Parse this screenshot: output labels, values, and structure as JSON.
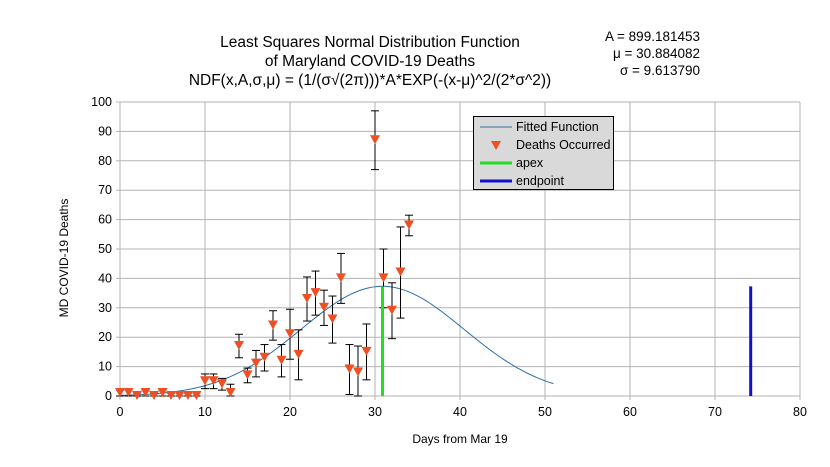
{
  "chart_data": {
    "type": "scatter",
    "title_lines": [
      "Least Squares Normal Distribution Function",
      "of Maryland COVID-19 Deaths",
      "NDF(x,A,σ,μ) = (1/(σ√(2π)))*A*EXP(-(x-μ)^2/(2*σ^2))"
    ],
    "parameters": [
      "A = 899.181453",
      "μ = 30.884082",
      "σ = 9.613790"
    ],
    "xlabel": "Days from Mar 19",
    "ylabel": "MD COVID-19 Deaths",
    "xlim": [
      0,
      80
    ],
    "ylim": [
      0,
      100
    ],
    "x_ticks": [
      0,
      10,
      20,
      30,
      40,
      50,
      60,
      70,
      80
    ],
    "y_ticks": [
      0,
      10,
      20,
      30,
      40,
      50,
      60,
      70,
      80,
      90,
      100
    ],
    "grid": true,
    "legend_position": "top-right",
    "fit": {
      "A": 899.181453,
      "mu": 30.884082,
      "sigma": 9.61379,
      "x_range": [
        0,
        51
      ]
    },
    "series": [
      {
        "name": "Fitted Function",
        "kind": "line",
        "color": "#2f6ea6"
      },
      {
        "name": "Deaths Occurred",
        "kind": "marker",
        "color": "#f04e23",
        "x": [
          0,
          1,
          2,
          3,
          4,
          5,
          6,
          7,
          8,
          9,
          10,
          11,
          12,
          13,
          14,
          15,
          16,
          17,
          18,
          19,
          20,
          21,
          22,
          23,
          24,
          25,
          26,
          27,
          28,
          29,
          30,
          31,
          32,
          33,
          34
        ],
        "y": [
          1,
          1,
          0,
          1,
          0,
          1,
          0,
          0,
          0,
          0,
          5,
          5,
          4,
          1,
          17,
          7,
          11,
          13,
          24,
          12,
          21,
          14,
          33,
          35,
          30,
          26,
          40,
          9,
          8,
          15,
          87,
          40,
          29,
          42,
          58
        ],
        "error": [
          1,
          1,
          1,
          1,
          1,
          1,
          1,
          1,
          1,
          1,
          2.5,
          2.5,
          2,
          3,
          4,
          2.5,
          4.5,
          4.5,
          5,
          5.5,
          8.5,
          8.5,
          7.5,
          7.5,
          6,
          8,
          8.5,
          8.5,
          9,
          9.5,
          10,
          10,
          9.5,
          15.5,
          3.5
        ]
      },
      {
        "name": "apex",
        "kind": "vline",
        "color": "#22dd22",
        "x": 30.884082,
        "y": [
          0,
          37.3
        ]
      },
      {
        "name": "endpoint",
        "kind": "vline",
        "color": "#1010cc",
        "x": 74.2,
        "y": [
          0,
          37.3
        ]
      }
    ]
  }
}
